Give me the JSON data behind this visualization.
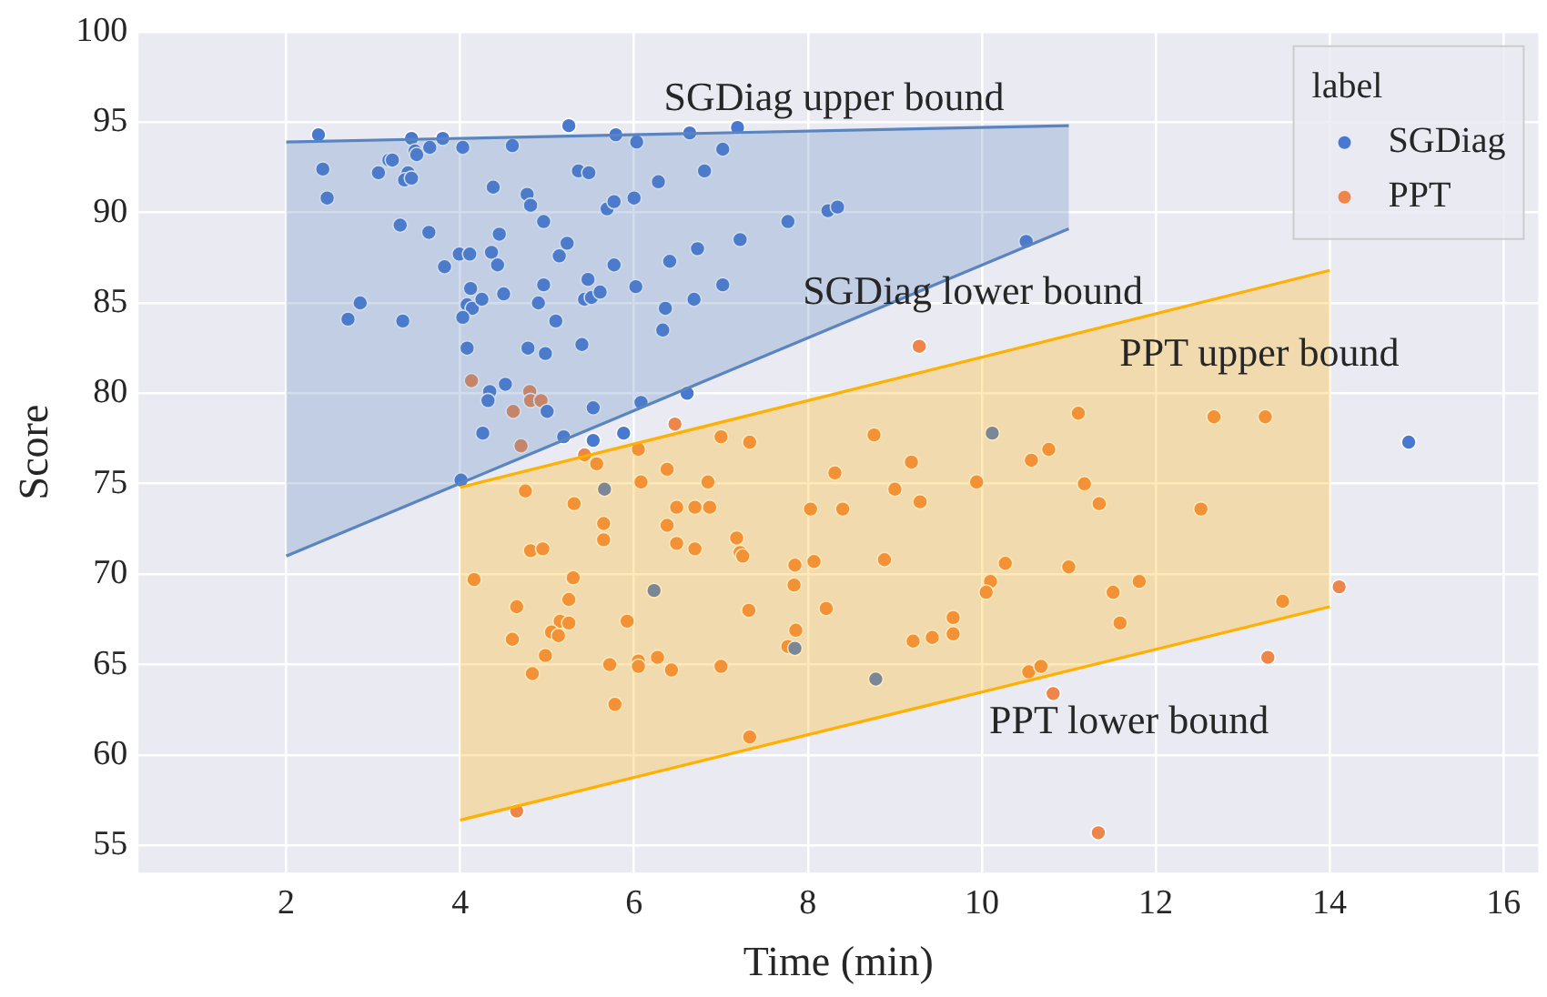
{
  "chart_data": {
    "type": "scatter",
    "xlabel": "Time (min)",
    "ylabel": "Score",
    "legend_title": "label",
    "legend": "top right",
    "grid": true,
    "marker": "circle",
    "line_style": "solid",
    "xlim": [
      0.3,
      16.4
    ],
    "xticks": [
      2,
      4,
      6,
      8,
      10,
      12,
      14,
      16
    ],
    "ylim": [
      53.5,
      100
    ],
    "yticks": [
      55,
      60,
      65,
      70,
      75,
      80,
      85,
      90,
      95,
      100
    ],
    "series": [
      {
        "name": "SGDiag",
        "color": "#4878d0",
        "x": [
          2.37,
          3.44,
          3.8,
          5.25,
          5.79,
          6.03,
          4.6,
          4.03,
          3.65,
          3.48,
          3.5,
          3.18,
          3.22,
          2.42,
          3.06,
          3.4,
          3.36,
          3.44,
          5.36,
          5.48,
          2.47,
          4.38,
          4.77,
          4.81,
          6.28,
          5.69,
          5.77,
          6.0,
          3.31,
          3.64,
          4.96,
          4.45,
          5.23,
          3.99,
          4.11,
          4.36,
          5.14,
          3.82,
          4.43,
          5.77,
          6.41,
          4.12,
          4.96,
          5.47,
          6.02,
          2.85,
          2.71,
          3.34,
          4.08,
          4.14,
          4.25,
          4.5,
          4.9,
          5.43,
          5.51,
          5.61,
          4.03,
          5.1,
          6.36,
          6.33,
          4.08,
          4.78,
          4.98,
          5.4,
          4.52,
          4.34,
          4.32,
          5.0,
          5.53,
          6.08,
          4.26,
          5.19,
          5.53,
          5.88,
          4.01,
          5.66,
          6.23,
          6.61,
          10.12,
          7.85,
          8.78,
          6.64,
          7.19,
          7.02,
          6.81,
          7.77,
          8.23,
          8.34,
          7.22,
          6.73,
          7.02,
          6.69,
          10.51,
          14.91
        ],
        "values": [
          94.3,
          94.1,
          94.1,
          94.8,
          94.3,
          93.9,
          93.7,
          93.6,
          93.6,
          93.4,
          93.2,
          92.9,
          92.9,
          92.4,
          92.2,
          92.2,
          91.8,
          91.9,
          92.3,
          92.2,
          90.8,
          91.4,
          91.0,
          90.4,
          91.7,
          90.2,
          90.6,
          90.8,
          89.3,
          88.9,
          89.5,
          88.8,
          88.3,
          87.7,
          87.7,
          87.8,
          87.6,
          87.0,
          87.1,
          87.1,
          87.3,
          85.8,
          86.0,
          86.3,
          85.9,
          85.0,
          84.1,
          84.0,
          84.9,
          84.7,
          85.2,
          85.5,
          85.0,
          85.2,
          85.3,
          85.6,
          84.2,
          84.0,
          84.7,
          83.5,
          82.5,
          82.5,
          82.2,
          82.7,
          80.5,
          80.1,
          79.6,
          79.0,
          79.2,
          79.5,
          77.8,
          77.6,
          77.4,
          77.8,
          75.2,
          74.7,
          69.1,
          80.0,
          77.8,
          65.9,
          64.2,
          94.4,
          94.7,
          93.5,
          92.3,
          89.5,
          90.1,
          90.3,
          88.5,
          88.0,
          86.0,
          85.2,
          88.4,
          77.3
        ]
      },
      {
        "name": "PPT",
        "color": "#ee854a",
        "x": [
          4.13,
          4.8,
          4.81,
          4.93,
          4.61,
          4.7,
          6.47,
          5.43,
          5.57,
          6.05,
          6.38,
          4.75,
          5.31,
          6.08,
          6.49,
          5.65,
          6.38,
          5.65,
          6.49,
          4.81,
          4.95,
          4.16,
          5.3,
          4.65,
          5.25,
          5.15,
          5.25,
          5.05,
          5.13,
          5.92,
          4.6,
          4.98,
          4.83,
          5.72,
          6.05,
          6.05,
          6.27,
          6.43,
          5.78,
          4.65,
          9.28,
          7.0,
          7.33,
          8.76,
          11.11,
          10.57,
          10.77,
          8.31,
          9.19,
          6.85,
          9.94,
          11.18,
          9.0,
          9.29,
          6.7,
          6.87,
          8.03,
          8.4,
          6.7,
          7.18,
          7.22,
          7.25,
          7.85,
          8.07,
          8.88,
          10.27,
          11.0,
          7.84,
          10.1,
          10.05,
          7.32,
          8.21,
          9.67,
          9.67,
          9.43,
          9.21,
          7.86,
          7.77,
          7.0,
          10.54,
          10.68,
          10.82,
          7.33,
          12.67,
          13.26,
          11.35,
          12.52,
          11.81,
          11.51,
          11.59,
          13.46,
          14.11,
          13.29,
          11.34
        ],
        "values": [
          80.7,
          80.1,
          79.6,
          79.6,
          79.0,
          77.1,
          78.3,
          76.6,
          76.1,
          76.9,
          75.8,
          74.6,
          73.9,
          75.1,
          73.7,
          72.8,
          72.7,
          71.9,
          71.7,
          71.3,
          71.4,
          69.7,
          69.8,
          68.2,
          68.6,
          67.4,
          67.3,
          66.8,
          66.6,
          67.4,
          66.4,
          65.5,
          64.5,
          65.0,
          65.2,
          64.9,
          65.4,
          64.7,
          62.8,
          56.9,
          82.6,
          77.6,
          77.3,
          77.7,
          78.9,
          76.3,
          76.9,
          75.6,
          76.2,
          75.1,
          75.1,
          75.0,
          74.7,
          74.0,
          73.7,
          73.7,
          73.6,
          73.6,
          71.4,
          72.0,
          71.2,
          71.0,
          70.5,
          70.7,
          70.8,
          70.6,
          70.4,
          69.4,
          69.6,
          69.0,
          68.0,
          68.1,
          67.6,
          66.7,
          66.5,
          66.3,
          66.9,
          66.0,
          64.9,
          64.6,
          64.9,
          63.4,
          61.0,
          78.7,
          78.7,
          73.9,
          73.6,
          69.6,
          69.0,
          67.3,
          68.5,
          69.3,
          65.4,
          55.7
        ]
      },
      {
        "name": "SGDiag upper bound",
        "type": "line",
        "marker": "none",
        "color": "#5a85c0",
        "x": [
          2,
          11
        ],
        "values": [
          93.9,
          94.8
        ],
        "lower": [
          71.0,
          89.1
        ],
        "upper": [
          93.9,
          94.8
        ]
      },
      {
        "name": "SGDiag lower bound",
        "type": "line",
        "marker": "none",
        "color": "#5a85c0",
        "x": [
          2,
          11
        ],
        "values": [
          71.0,
          89.1
        ]
      },
      {
        "name": "PPT upper bound",
        "type": "line",
        "marker": "none",
        "color": "#ffb000",
        "x": [
          4,
          14
        ],
        "values": [
          74.8,
          86.8
        ],
        "lower": [
          56.4,
          68.2
        ],
        "upper": [
          74.8,
          86.8
        ]
      },
      {
        "name": "PPT lower bound",
        "type": "line",
        "marker": "none",
        "color": "#ffb000",
        "x": [
          4,
          14
        ],
        "values": [
          56.4,
          68.2
        ]
      }
    ]
  }
}
